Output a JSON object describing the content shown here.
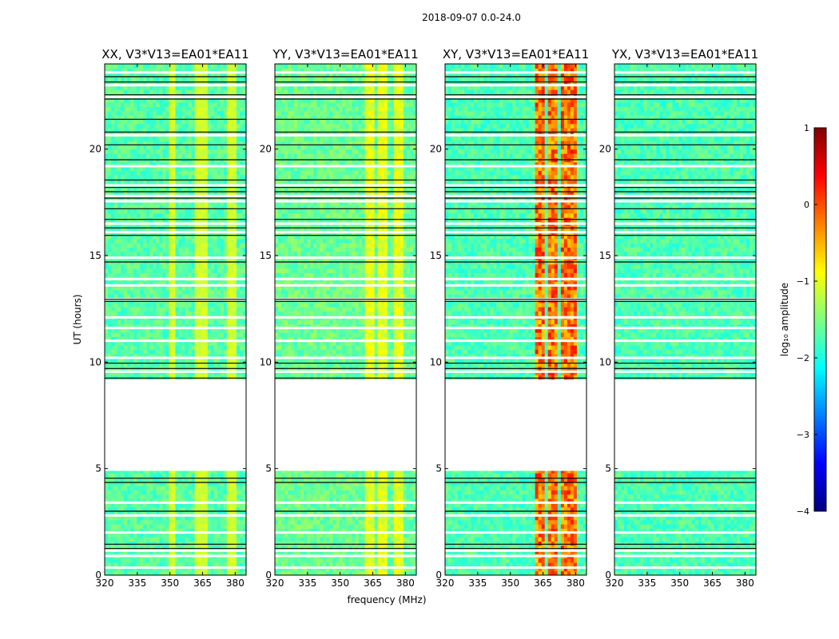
{
  "figure_title": "2018-09-07 0.0-24.0",
  "colors": {
    "jet": [
      "#00007f",
      "#0000ff",
      "#007fff",
      "#00ffff",
      "#7fff7f",
      "#ffff00",
      "#ff7f00",
      "#ff0000",
      "#7f0000"
    ],
    "gap": "#ffffff",
    "flag_line": "#000000"
  },
  "chart_data": {
    "type": "heatmap",
    "xlabel": "frequency (MHz)",
    "ylabel": "UT (hours)",
    "xlim": [
      320,
      385
    ],
    "ylim": [
      0,
      24
    ],
    "xticks": [
      320,
      335,
      350,
      365,
      380
    ],
    "yticks": [
      0,
      5,
      10,
      15,
      20
    ],
    "colorbar": {
      "label": "log₁₀ amplitude",
      "range": [
        -4,
        1
      ],
      "ticks": [
        1,
        0,
        -1,
        -2,
        -3,
        -4
      ]
    },
    "data_gaps_ut": [
      [
        5.0,
        9.1
      ]
    ],
    "white_gap_ut": [
      0.35,
      0.9,
      1.15,
      2.0,
      2.8,
      3.4,
      4.95,
      9.55,
      10.2,
      11.0,
      11.6,
      12.1,
      12.95,
      13.6,
      13.9,
      14.9,
      16.1,
      16.5,
      17.55,
      17.8,
      18.3,
      19.2,
      20.65,
      22.45,
      23.0,
      23.6
    ],
    "black_flag_ut": [
      1.25,
      1.45,
      3.0,
      4.35,
      4.55,
      9.25,
      9.7,
      9.95,
      12.85,
      12.95,
      14.7,
      15.95,
      16.3,
      16.7,
      17.2,
      17.7,
      18.0,
      18.2,
      18.55,
      19.5,
      20.2,
      20.8,
      21.4,
      22.35,
      22.55,
      23.15,
      23.4
    ],
    "panels": [
      {
        "name": "XX",
        "title": "XX, V3*V13=EA01*EA11",
        "base_log_amp": -1.7,
        "rfi_bands_mhz": [
          [
            349,
            352
          ],
          [
            361,
            368
          ],
          [
            376,
            381
          ]
        ],
        "rfi_log_amp": [
          -1.2,
          -1.0
        ]
      },
      {
        "name": "YY",
        "title": "YY, V3*V13=EA01*EA11",
        "base_log_amp": -1.6,
        "rfi_bands_mhz": [
          [
            362,
            366
          ],
          [
            367,
            371
          ],
          [
            374,
            379
          ]
        ],
        "rfi_log_amp": [
          -1.2,
          -0.8
        ]
      },
      {
        "name": "XY",
        "title": "XY, V3*V13=EA01*EA11",
        "base_log_amp": -1.75,
        "rfi_bands_mhz": [
          [
            362,
            366
          ],
          [
            367,
            371
          ],
          [
            373,
            376
          ],
          [
            376,
            380
          ]
        ],
        "rfi_log_amp": [
          -0.7,
          0.3
        ]
      },
      {
        "name": "YX",
        "title": "YX, V3*V13=EA01*EA11",
        "base_log_amp": -1.75,
        "rfi_bands_mhz": [],
        "rfi_log_amp": [
          -1.6,
          -1.6
        ]
      }
    ]
  }
}
